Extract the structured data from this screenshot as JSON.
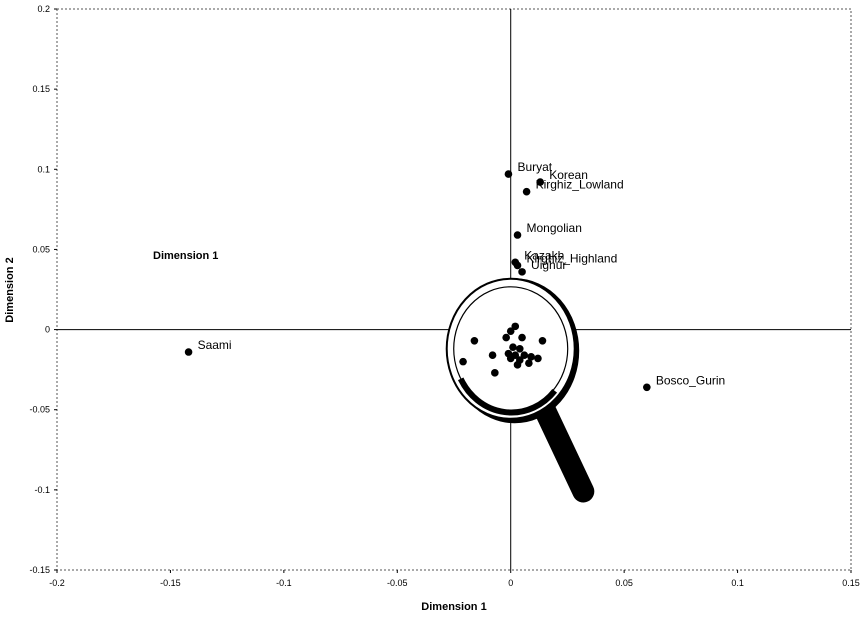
{
  "chart_data": {
    "type": "scatter",
    "title": "",
    "xlabel": "Dimension 1",
    "ylabel": "Dimension 2",
    "annotation": "Dimension 1",
    "xlim": [
      -0.2,
      0.15
    ],
    "ylim": [
      -0.15,
      0.2
    ],
    "x_ticks": [
      -0.2,
      -0.15,
      -0.1,
      -0.05,
      0,
      0.05,
      0.1,
      0.15
    ],
    "y_ticks": [
      -0.15,
      -0.1,
      -0.05,
      0,
      0.05,
      0.1,
      0.15,
      0.2
    ],
    "x_tick_labels": [
      "-0.2",
      "-0.15",
      "-0.1",
      "-0.05",
      "0",
      "0.05",
      "0.1",
      "0.15"
    ],
    "y_tick_labels": [
      "-0.15",
      "-0.1",
      "-0.05",
      "0",
      "0.05",
      "0.1",
      "0.15",
      "0.2"
    ],
    "grid": false,
    "legend": "none",
    "labeled_points": [
      {
        "label": "Buryat",
        "x": -0.001,
        "y": 0.097
      },
      {
        "label": "Korean",
        "x": 0.013,
        "y": 0.092
      },
      {
        "label": "Kirghiz_Lowland",
        "x": 0.007,
        "y": 0.086
      },
      {
        "label": "Mongolian",
        "x": 0.003,
        "y": 0.059
      },
      {
        "label": "Kazakh",
        "x": 0.002,
        "y": 0.042
      },
      {
        "label": "Kirghiz_Highland",
        "x": 0.003,
        "y": 0.04
      },
      {
        "label": "Uighur",
        "x": 0.005,
        "y": 0.036
      },
      {
        "label": "Saami",
        "x": -0.142,
        "y": -0.014
      },
      {
        "label": "Bosco_Gurin",
        "x": 0.06,
        "y": -0.036
      }
    ],
    "cluster_points": [
      {
        "x": 0.002,
        "y": 0.002
      },
      {
        "x": 0.0,
        "y": -0.001
      },
      {
        "x": -0.002,
        "y": -0.005
      },
      {
        "x": 0.005,
        "y": -0.005
      },
      {
        "x": 0.014,
        "y": -0.007
      },
      {
        "x": -0.016,
        "y": -0.007
      },
      {
        "x": 0.001,
        "y": -0.011
      },
      {
        "x": 0.004,
        "y": -0.012
      },
      {
        "x": -0.001,
        "y": -0.015
      },
      {
        "x": -0.008,
        "y": -0.016
      },
      {
        "x": 0.002,
        "y": -0.016
      },
      {
        "x": 0.006,
        "y": -0.016
      },
      {
        "x": 0.009,
        "y": -0.017
      },
      {
        "x": 0.012,
        "y": -0.018
      },
      {
        "x": 0.0,
        "y": -0.018
      },
      {
        "x": 0.004,
        "y": -0.019
      },
      {
        "x": -0.021,
        "y": -0.02
      },
      {
        "x": 0.008,
        "y": -0.021
      },
      {
        "x": 0.003,
        "y": -0.022
      },
      {
        "x": -0.007,
        "y": -0.027
      }
    ],
    "marker_color": "#000000",
    "magnifier": {
      "center_x": 0.0,
      "center_y": -0.012,
      "handle_end_x": 0.032,
      "handle_end_y": -0.101,
      "color": "#000000"
    }
  }
}
